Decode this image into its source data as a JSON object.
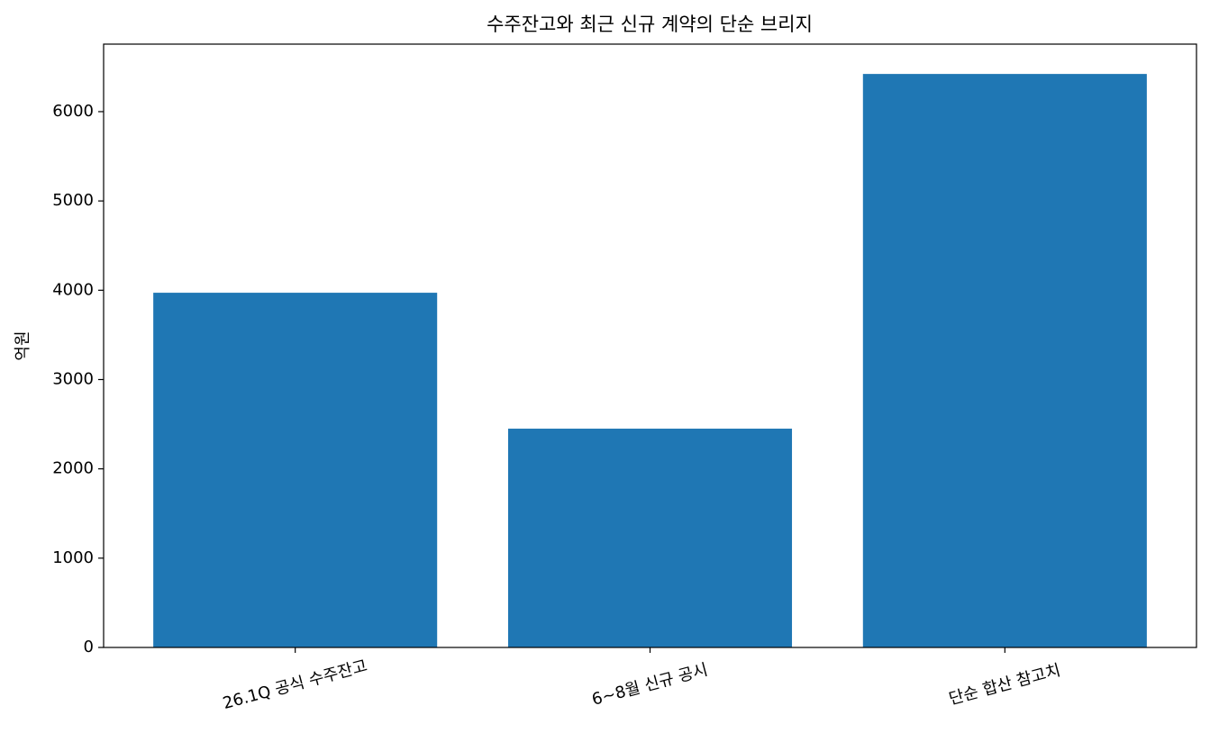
{
  "chart_data": {
    "type": "bar",
    "title": "수주잔고와 최근 신규 계약의 단순 브리지",
    "ylabel": "억원",
    "categories": [
      "26.1Q 공식 수주잔고",
      "6~8월 신규 공시",
      "단순 합산 참고치"
    ],
    "values": [
      3972,
      2450,
      6422
    ],
    "color": "#1f77b4",
    "ylim": [
      0,
      6756
    ],
    "yticks": [
      0,
      1000,
      2000,
      3000,
      4000,
      5000,
      6000
    ],
    "grid": false
  }
}
